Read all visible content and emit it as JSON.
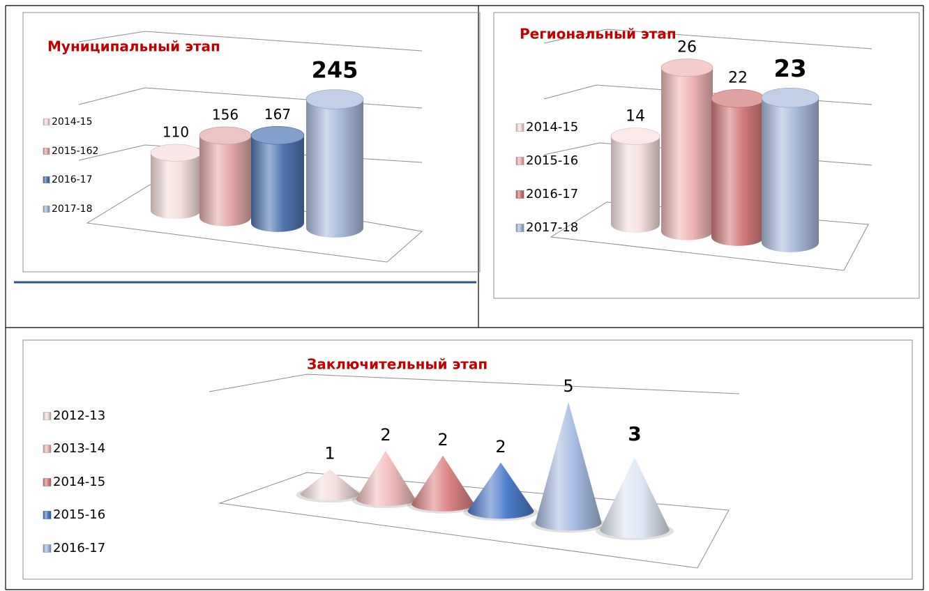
{
  "chart_data": [
    {
      "type": "bar",
      "title": "Муниципальный этап",
      "categories": [
        "2014-15",
        "2015-162",
        "2016-17",
        "2017-18"
      ],
      "values": [
        110,
        156,
        167,
        245
      ],
      "colors": [
        "#f6dedd",
        "#e3aaa9",
        "#4f76b3",
        "#a8badc"
      ],
      "ylim": [
        0,
        300
      ],
      "emphasis": 3
    },
    {
      "type": "bar",
      "title": "Региональный этап",
      "categories": [
        "2014-15",
        "2015-16",
        "2016-17",
        "2017-18"
      ],
      "values": [
        14,
        26,
        22,
        23
      ],
      "colors": [
        "#f6e0df",
        "#efb6b5",
        "#d07a79",
        "#a8badc"
      ],
      "ylim": [
        0,
        30
      ],
      "emphasis": 3
    },
    {
      "type": "cone",
      "title": "Заключительный этап",
      "categories": [
        "2012-13",
        "2013-14",
        "2014-15",
        "2015-16",
        "2016-17",
        null
      ],
      "values": [
        1,
        2,
        2,
        2,
        5,
        3
      ],
      "colors": [
        "#f4dedd",
        "#f0bcbb",
        "#dc8383",
        "#4d7ccb",
        "#a5bbe2",
        "#dfe7f4"
      ],
      "ylim": [
        0,
        5
      ],
      "emphasis": 5
    }
  ]
}
